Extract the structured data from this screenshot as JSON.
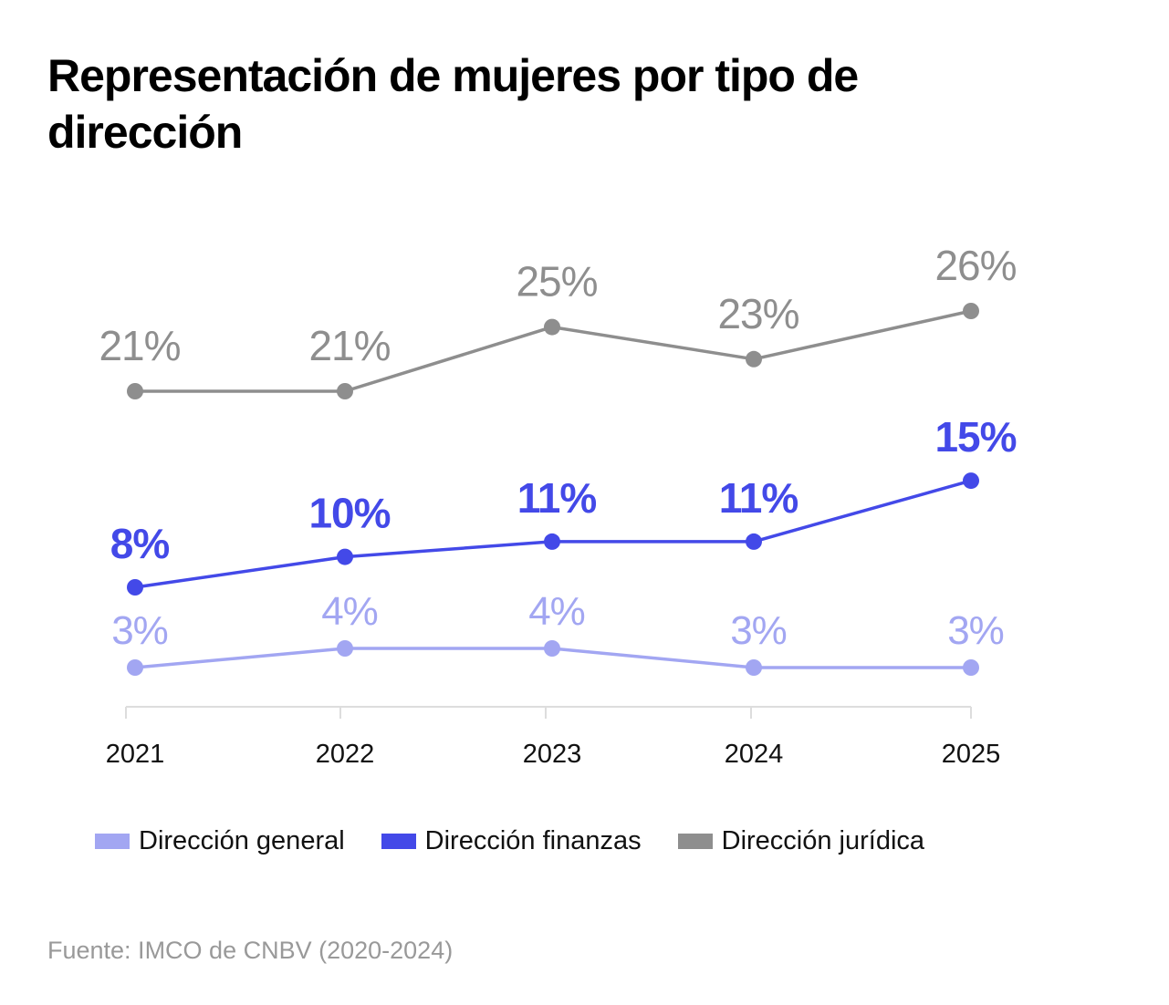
{
  "chart_data": {
    "type": "line",
    "title": "Representación de mujeres por tipo de dirección",
    "xlabel": "",
    "ylabel": "",
    "categories": [
      "2021",
      "2022",
      "2023",
      "2024",
      "2025"
    ],
    "value_suffix": "%",
    "grid": false,
    "legend_position": "bottom",
    "series": [
      {
        "name": "Dirección general",
        "color": "#A2A6F2",
        "values": [
          3,
          4,
          4,
          3,
          3
        ]
      },
      {
        "name": "Dirección finanzas",
        "color": "#4349E8",
        "values": [
          8,
          10,
          11,
          11,
          15
        ]
      },
      {
        "name": "Dirección jurídica",
        "color": "#8E8E8E",
        "values": [
          21,
          21,
          25,
          23,
          26
        ]
      }
    ]
  },
  "source": "Fuente: IMCO de CNBV (2020-2024)"
}
